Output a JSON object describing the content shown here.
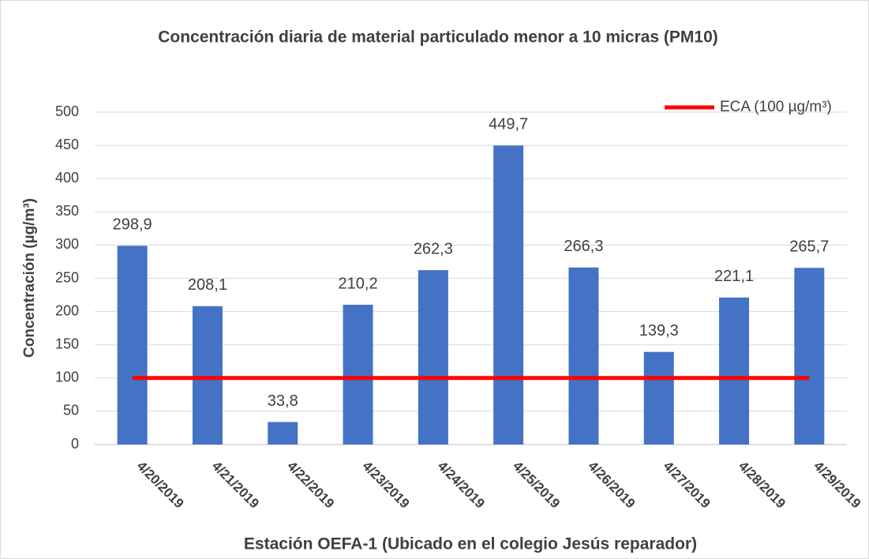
{
  "chart_data": {
    "type": "bar",
    "title": "Concentración diaria de material particulado menor a 10 micras (PM10)",
    "xlabel": "Estación OEFA-1 (Ubicado en el colegio Jesús reparador)",
    "ylabel": "Concentración (µg/m³)",
    "categories": [
      "4/20/2019",
      "4/21/2019",
      "4/22/2019",
      "4/23/2019",
      "4/24/2019",
      "4/25/2019",
      "4/26/2019",
      "4/27/2019",
      "4/28/2019",
      "4/29/2019"
    ],
    "values": [
      298.9,
      208.1,
      33.8,
      210.2,
      262.3,
      449.7,
      266.3,
      139.3,
      221.1,
      265.7
    ],
    "value_labels": [
      "298,9",
      "208,1",
      "33,8",
      "210,2",
      "262,3",
      "449,7",
      "266,3",
      "139,3",
      "221,1",
      "265,7"
    ],
    "color": "#4472c4",
    "lines": [
      {
        "name": "ECA (100 µg/m³)",
        "color": "#ff0000",
        "values": [
          100,
          100,
          100,
          100,
          100,
          100,
          100,
          100,
          100,
          100
        ]
      }
    ],
    "ylim": [
      0,
      500
    ],
    "yticks": [
      0,
      50,
      100,
      150,
      200,
      250,
      300,
      350,
      400,
      450,
      500
    ],
    "grid": true,
    "legend": "top-right"
  }
}
